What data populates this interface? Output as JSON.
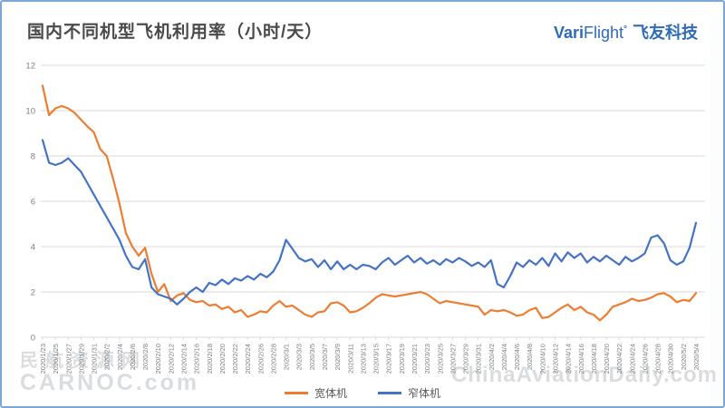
{
  "frame": {
    "border_color": "#7ba7d7"
  },
  "header": {
    "title": "国内不同机型飞机利用率（小时/天）",
    "logo": {
      "vari": "Vari",
      "flight": "Flight",
      "reg": "°",
      "cn": "飞友科技",
      "color": "#2e6bb7"
    }
  },
  "watermarks": {
    "left_cn": "民航资源网",
    "left_en": "CARNOC.com",
    "right": "ChinaAviationDaily.com"
  },
  "chart_data": {
    "type": "line",
    "title": "国内不同机型飞机利用率（小时/天）",
    "ylabel": "",
    "xlabel": "",
    "ylim": [
      0,
      12
    ],
    "y_ticks": [
      0,
      2,
      4,
      6,
      8,
      10,
      12
    ],
    "grid": true,
    "legend_position": "bottom",
    "x_tick_step": 2,
    "x": [
      "2020/1/23",
      "2020/1/24",
      "2020/1/25",
      "2020/1/26",
      "2020/1/27",
      "2020/1/28",
      "2020/1/29",
      "2020/1/30",
      "2020/1/31",
      "2020/2/1",
      "2020/2/2",
      "2020/2/3",
      "2020/2/4",
      "2020/2/5",
      "2020/2/6",
      "2020/2/7",
      "2020/2/8",
      "2020/2/9",
      "2020/2/10",
      "2020/2/11",
      "2020/2/12",
      "2020/2/13",
      "2020/2/14",
      "2020/2/15",
      "2020/2/16",
      "2020/2/17",
      "2020/2/18",
      "2020/2/19",
      "2020/2/20",
      "2020/2/21",
      "2020/2/22",
      "2020/2/23",
      "2020/2/24",
      "2020/2/25",
      "2020/2/26",
      "2020/2/27",
      "2020/2/28",
      "2020/2/29",
      "2020/3/1",
      "2020/3/2",
      "2020/3/3",
      "2020/3/4",
      "2020/3/5",
      "2020/3/6",
      "2020/3/7",
      "2020/3/8",
      "2020/3/9",
      "2020/3/10",
      "2020/3/11",
      "2020/3/12",
      "2020/3/13",
      "2020/3/14",
      "2020/3/15",
      "2020/3/16",
      "2020/3/17",
      "2020/3/18",
      "2020/3/19",
      "2020/3/20",
      "2020/3/21",
      "2020/3/22",
      "2020/3/23",
      "2020/3/24",
      "2020/3/25",
      "2020/3/26",
      "2020/3/27",
      "2020/3/28",
      "2020/3/29",
      "2020/3/30",
      "2020/3/31",
      "2020/4/1",
      "2020/4/2",
      "2020/4/3",
      "2020/4/4",
      "2020/4/5",
      "2020/4/6",
      "2020/4/7",
      "2020/4/8",
      "2020/4/9",
      "2020/4/10",
      "2020/4/11",
      "2020/4/12",
      "2020/4/13",
      "2020/4/14",
      "2020/4/15",
      "2020/4/16",
      "2020/4/17",
      "2020/4/18",
      "2020/4/19",
      "2020/4/20",
      "2020/4/21",
      "2020/4/22",
      "2020/4/23",
      "2020/4/24",
      "2020/4/25",
      "2020/4/26",
      "2020/4/27",
      "2020/4/28",
      "2020/4/29",
      "2020/4/30",
      "2020/5/1",
      "2020/5/2",
      "2020/5/3",
      "2020/5/4"
    ],
    "series": [
      {
        "name": "宽体机",
        "color": "#ED7D31",
        "values": [
          11.1,
          9.8,
          10.1,
          10.2,
          10.1,
          9.9,
          9.6,
          9.3,
          9.05,
          8.3,
          8.0,
          7.0,
          5.9,
          4.6,
          4.0,
          3.6,
          3.95,
          2.8,
          2.0,
          2.35,
          1.6,
          1.85,
          1.95,
          1.65,
          1.55,
          1.6,
          1.4,
          1.45,
          1.25,
          1.35,
          1.1,
          1.2,
          0.9,
          1.0,
          1.15,
          1.1,
          1.4,
          1.6,
          1.35,
          1.4,
          1.2,
          1.0,
          0.9,
          1.1,
          1.15,
          1.5,
          1.55,
          1.4,
          1.1,
          1.15,
          1.3,
          1.5,
          1.75,
          1.9,
          1.85,
          1.8,
          1.85,
          1.9,
          1.95,
          2.0,
          1.9,
          1.7,
          1.5,
          1.6,
          1.55,
          1.5,
          1.45,
          1.4,
          1.35,
          1.0,
          1.2,
          1.15,
          1.2,
          1.1,
          0.95,
          1.0,
          1.2,
          1.3,
          0.85,
          0.9,
          1.1,
          1.3,
          1.45,
          1.2,
          1.35,
          1.1,
          1.0,
          0.75,
          1.0,
          1.35,
          1.45,
          1.55,
          1.7,
          1.6,
          1.65,
          1.75,
          1.9,
          1.95,
          1.8,
          1.55,
          1.65,
          1.6,
          1.95
        ]
      },
      {
        "name": "窄体机",
        "color": "#4472C4",
        "values": [
          8.7,
          7.7,
          7.6,
          7.7,
          7.9,
          7.6,
          7.3,
          6.8,
          6.3,
          5.8,
          5.3,
          4.8,
          4.3,
          3.6,
          3.1,
          3.0,
          3.45,
          2.2,
          1.9,
          1.8,
          1.7,
          1.45,
          1.7,
          2.0,
          2.2,
          2.0,
          2.4,
          2.3,
          2.55,
          2.35,
          2.6,
          2.5,
          2.7,
          2.55,
          2.8,
          2.65,
          2.9,
          3.4,
          4.3,
          3.9,
          3.5,
          3.35,
          3.45,
          3.1,
          3.4,
          3.0,
          3.35,
          3.0,
          3.2,
          3.0,
          3.2,
          3.15,
          3.0,
          3.3,
          3.5,
          3.2,
          3.4,
          3.6,
          3.3,
          3.5,
          3.25,
          3.4,
          3.2,
          3.45,
          3.3,
          3.5,
          3.35,
          3.15,
          3.3,
          3.1,
          3.4,
          2.35,
          2.2,
          2.7,
          3.3,
          3.1,
          3.4,
          3.2,
          3.5,
          3.15,
          3.7,
          3.35,
          3.75,
          3.5,
          3.7,
          3.3,
          3.55,
          3.35,
          3.6,
          3.4,
          3.2,
          3.55,
          3.35,
          3.5,
          3.7,
          4.4,
          4.5,
          4.15,
          3.4,
          3.2,
          3.35,
          3.95,
          5.05
        ]
      }
    ]
  }
}
